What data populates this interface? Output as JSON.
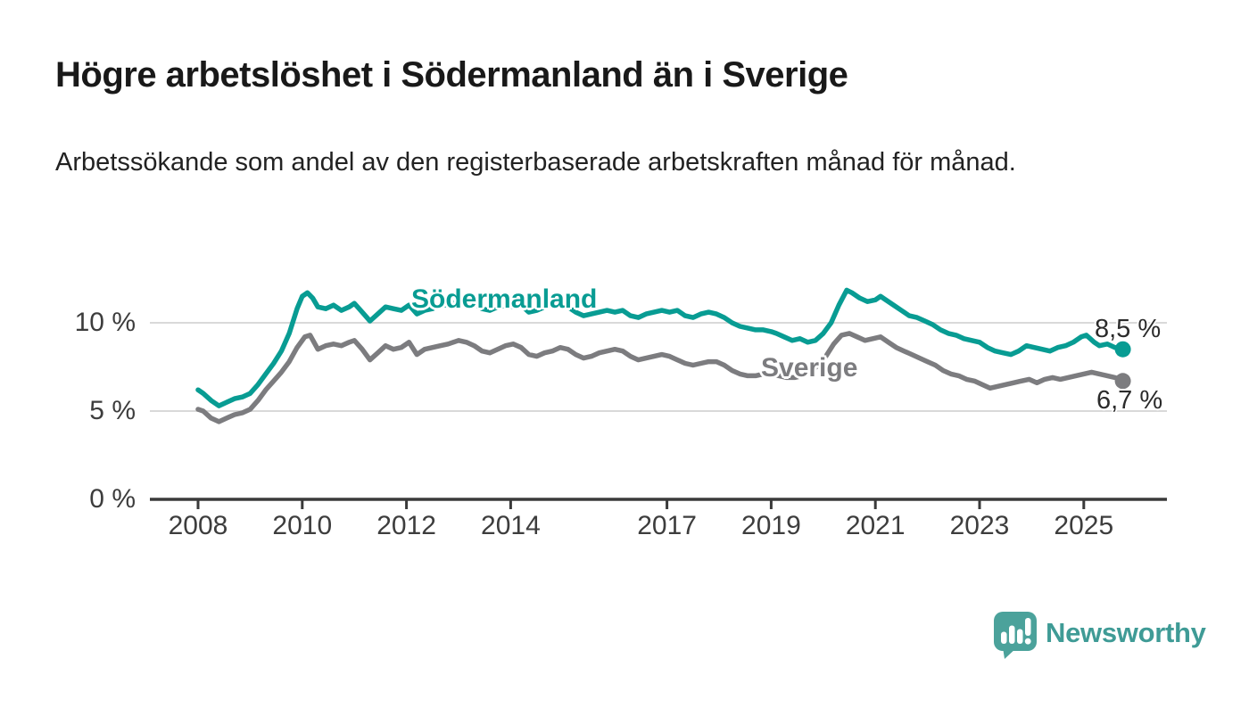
{
  "header": {
    "title": "Högre arbetslöshet i Södermanland än i Sverige",
    "subtitle": "Arbetssökande som andel av den registerbaserade arbetskraften månad för månad."
  },
  "branding": {
    "wordmark": "Newsworthy",
    "logo_icon": "speech-bubble-bar-chart-icon"
  },
  "colors": {
    "sodermanland": "#089c93",
    "sverige": "#7c7c7f",
    "grid": "#d9d9d9",
    "axis": "#3a3a3a",
    "title_text": "#191919",
    "label_text": "#2b2b2b",
    "brand_teal": "#4ba29b"
  },
  "chart_data": {
    "type": "line",
    "title": "Högre arbetslöshet i Södermanland än i Sverige",
    "subtitle": "Arbetssökande som andel av den registerbaserade arbetskraften månad för månad.",
    "xlabel": "",
    "ylabel": "",
    "x_unit": "year (monthly observations)",
    "y_unit": "percent of registered labour force",
    "xlim": [
      2007.1,
      2026.6
    ],
    "ylim": [
      0,
      12.5
    ],
    "grid": "horizontal",
    "legend_position": "inline-labels",
    "y_ticks": [
      {
        "value": 0,
        "label": "0 %"
      },
      {
        "value": 5,
        "label": "5 %"
      },
      {
        "value": 10,
        "label": "10 %"
      }
    ],
    "x_ticks": [
      {
        "value": 2008,
        "label": "2008"
      },
      {
        "value": 2010,
        "label": "2010"
      },
      {
        "value": 2012,
        "label": "2012"
      },
      {
        "value": 2014,
        "label": "2014"
      },
      {
        "value": 2017,
        "label": "2017"
      },
      {
        "value": 2019,
        "label": "2019"
      },
      {
        "value": 2021,
        "label": "2021"
      },
      {
        "value": 2023,
        "label": "2023"
      },
      {
        "value": 2025,
        "label": "2025"
      }
    ],
    "series": [
      {
        "name": "Södermanland",
        "color": "#089c93",
        "end_label": "8,5 %",
        "end_value": 8.5,
        "points": [
          [
            2008.0,
            6.2
          ],
          [
            2008.1,
            6.0
          ],
          [
            2008.25,
            5.6
          ],
          [
            2008.4,
            5.3
          ],
          [
            2008.55,
            5.5
          ],
          [
            2008.7,
            5.7
          ],
          [
            2008.85,
            5.8
          ],
          [
            2009.0,
            6.0
          ],
          [
            2009.15,
            6.5
          ],
          [
            2009.3,
            7.1
          ],
          [
            2009.45,
            7.7
          ],
          [
            2009.6,
            8.4
          ],
          [
            2009.75,
            9.4
          ],
          [
            2009.9,
            10.8
          ],
          [
            2010.0,
            11.5
          ],
          [
            2010.1,
            11.7
          ],
          [
            2010.2,
            11.4
          ],
          [
            2010.3,
            10.9
          ],
          [
            2010.45,
            10.8
          ],
          [
            2010.6,
            11.0
          ],
          [
            2010.75,
            10.7
          ],
          [
            2010.9,
            10.9
          ],
          [
            2011.0,
            11.1
          ],
          [
            2011.15,
            10.6
          ],
          [
            2011.3,
            10.1
          ],
          [
            2011.45,
            10.5
          ],
          [
            2011.6,
            10.9
          ],
          [
            2011.75,
            10.8
          ],
          [
            2011.9,
            10.7
          ],
          [
            2012.05,
            11.0
          ],
          [
            2012.2,
            10.5
          ],
          [
            2012.35,
            10.7
          ],
          [
            2012.5,
            10.8
          ],
          [
            2012.65,
            11.0
          ],
          [
            2012.8,
            11.0
          ],
          [
            2013.0,
            11.2
          ],
          [
            2013.15,
            11.1
          ],
          [
            2013.3,
            11.1
          ],
          [
            2013.45,
            10.8
          ],
          [
            2013.6,
            10.7
          ],
          [
            2013.75,
            10.9
          ],
          [
            2013.9,
            11.0
          ],
          [
            2014.05,
            10.9
          ],
          [
            2014.2,
            11.0
          ],
          [
            2014.35,
            10.6
          ],
          [
            2014.5,
            10.7
          ],
          [
            2014.65,
            10.9
          ],
          [
            2014.8,
            11.0
          ],
          [
            2014.95,
            11.1
          ],
          [
            2015.1,
            10.9
          ],
          [
            2015.25,
            10.6
          ],
          [
            2015.4,
            10.4
          ],
          [
            2015.55,
            10.5
          ],
          [
            2015.7,
            10.6
          ],
          [
            2015.85,
            10.7
          ],
          [
            2016.0,
            10.6
          ],
          [
            2016.15,
            10.7
          ],
          [
            2016.3,
            10.4
          ],
          [
            2016.45,
            10.3
          ],
          [
            2016.6,
            10.5
          ],
          [
            2016.75,
            10.6
          ],
          [
            2016.9,
            10.7
          ],
          [
            2017.05,
            10.6
          ],
          [
            2017.2,
            10.7
          ],
          [
            2017.35,
            10.4
          ],
          [
            2017.5,
            10.3
          ],
          [
            2017.65,
            10.5
          ],
          [
            2017.8,
            10.6
          ],
          [
            2017.95,
            10.5
          ],
          [
            2018.1,
            10.3
          ],
          [
            2018.25,
            10.0
          ],
          [
            2018.4,
            9.8
          ],
          [
            2018.55,
            9.7
          ],
          [
            2018.7,
            9.6
          ],
          [
            2018.85,
            9.6
          ],
          [
            2019.0,
            9.5
          ],
          [
            2019.1,
            9.4
          ],
          [
            2019.25,
            9.2
          ],
          [
            2019.4,
            9.0
          ],
          [
            2019.55,
            9.1
          ],
          [
            2019.7,
            8.9
          ],
          [
            2019.85,
            9.0
          ],
          [
            2020.0,
            9.4
          ],
          [
            2020.15,
            10.0
          ],
          [
            2020.3,
            11.0
          ],
          [
            2020.45,
            11.85
          ],
          [
            2020.55,
            11.7
          ],
          [
            2020.7,
            11.4
          ],
          [
            2020.85,
            11.2
          ],
          [
            2021.0,
            11.3
          ],
          [
            2021.1,
            11.5
          ],
          [
            2021.2,
            11.3
          ],
          [
            2021.35,
            11.0
          ],
          [
            2021.5,
            10.7
          ],
          [
            2021.65,
            10.4
          ],
          [
            2021.8,
            10.3
          ],
          [
            2021.95,
            10.1
          ],
          [
            2022.1,
            9.9
          ],
          [
            2022.25,
            9.6
          ],
          [
            2022.4,
            9.4
          ],
          [
            2022.55,
            9.3
          ],
          [
            2022.7,
            9.1
          ],
          [
            2022.85,
            9.0
          ],
          [
            2023.0,
            8.9
          ],
          [
            2023.15,
            8.6
          ],
          [
            2023.3,
            8.4
          ],
          [
            2023.45,
            8.3
          ],
          [
            2023.6,
            8.2
          ],
          [
            2023.75,
            8.4
          ],
          [
            2023.9,
            8.7
          ],
          [
            2024.05,
            8.6
          ],
          [
            2024.2,
            8.5
          ],
          [
            2024.35,
            8.4
          ],
          [
            2024.5,
            8.6
          ],
          [
            2024.65,
            8.7
          ],
          [
            2024.8,
            8.9
          ],
          [
            2024.95,
            9.2
          ],
          [
            2025.05,
            9.3
          ],
          [
            2025.2,
            8.9
          ],
          [
            2025.3,
            8.7
          ],
          [
            2025.45,
            8.8
          ],
          [
            2025.6,
            8.6
          ],
          [
            2025.75,
            8.5
          ]
        ]
      },
      {
        "name": "Sverige",
        "color": "#7c7c7f",
        "end_label": "6,7 %",
        "end_value": 6.7,
        "points": [
          [
            2008.0,
            5.1
          ],
          [
            2008.1,
            5.0
          ],
          [
            2008.25,
            4.6
          ],
          [
            2008.4,
            4.4
          ],
          [
            2008.55,
            4.6
          ],
          [
            2008.7,
            4.8
          ],
          [
            2008.85,
            4.9
          ],
          [
            2009.0,
            5.1
          ],
          [
            2009.15,
            5.6
          ],
          [
            2009.3,
            6.2
          ],
          [
            2009.45,
            6.7
          ],
          [
            2009.6,
            7.2
          ],
          [
            2009.75,
            7.8
          ],
          [
            2009.9,
            8.6
          ],
          [
            2010.05,
            9.2
          ],
          [
            2010.15,
            9.3
          ],
          [
            2010.3,
            8.5
          ],
          [
            2010.45,
            8.7
          ],
          [
            2010.6,
            8.8
          ],
          [
            2010.75,
            8.7
          ],
          [
            2010.9,
            8.9
          ],
          [
            2011.0,
            9.0
          ],
          [
            2011.15,
            8.5
          ],
          [
            2011.3,
            7.9
          ],
          [
            2011.45,
            8.3
          ],
          [
            2011.6,
            8.7
          ],
          [
            2011.75,
            8.5
          ],
          [
            2011.9,
            8.6
          ],
          [
            2012.05,
            8.9
          ],
          [
            2012.2,
            8.2
          ],
          [
            2012.35,
            8.5
          ],
          [
            2012.5,
            8.6
          ],
          [
            2012.65,
            8.7
          ],
          [
            2012.8,
            8.8
          ],
          [
            2013.0,
            9.0
          ],
          [
            2013.15,
            8.9
          ],
          [
            2013.3,
            8.7
          ],
          [
            2013.45,
            8.4
          ],
          [
            2013.6,
            8.3
          ],
          [
            2013.75,
            8.5
          ],
          [
            2013.9,
            8.7
          ],
          [
            2014.05,
            8.8
          ],
          [
            2014.2,
            8.6
          ],
          [
            2014.35,
            8.2
          ],
          [
            2014.5,
            8.1
          ],
          [
            2014.65,
            8.3
          ],
          [
            2014.8,
            8.4
          ],
          [
            2014.95,
            8.6
          ],
          [
            2015.1,
            8.5
          ],
          [
            2015.25,
            8.2
          ],
          [
            2015.4,
            8.0
          ],
          [
            2015.55,
            8.1
          ],
          [
            2015.7,
            8.3
          ],
          [
            2015.85,
            8.4
          ],
          [
            2016.0,
            8.5
          ],
          [
            2016.15,
            8.4
          ],
          [
            2016.3,
            8.1
          ],
          [
            2016.45,
            7.9
          ],
          [
            2016.6,
            8.0
          ],
          [
            2016.75,
            8.1
          ],
          [
            2016.9,
            8.2
          ],
          [
            2017.05,
            8.1
          ],
          [
            2017.2,
            7.9
          ],
          [
            2017.35,
            7.7
          ],
          [
            2017.5,
            7.6
          ],
          [
            2017.65,
            7.7
          ],
          [
            2017.8,
            7.8
          ],
          [
            2017.95,
            7.8
          ],
          [
            2018.1,
            7.6
          ],
          [
            2018.25,
            7.3
          ],
          [
            2018.4,
            7.1
          ],
          [
            2018.55,
            7.0
          ],
          [
            2018.7,
            7.0
          ],
          [
            2018.85,
            7.1
          ],
          [
            2019.0,
            7.1
          ],
          [
            2019.15,
            7.0
          ],
          [
            2019.3,
            6.9
          ],
          [
            2019.45,
            6.9
          ],
          [
            2019.6,
            7.0
          ],
          [
            2019.75,
            7.2
          ],
          [
            2019.9,
            7.6
          ],
          [
            2020.05,
            8.1
          ],
          [
            2020.2,
            8.8
          ],
          [
            2020.35,
            9.3
          ],
          [
            2020.5,
            9.4
          ],
          [
            2020.65,
            9.2
          ],
          [
            2020.8,
            9.0
          ],
          [
            2020.95,
            9.1
          ],
          [
            2021.1,
            9.2
          ],
          [
            2021.25,
            8.9
          ],
          [
            2021.4,
            8.6
          ],
          [
            2021.55,
            8.4
          ],
          [
            2021.7,
            8.2
          ],
          [
            2021.85,
            8.0
          ],
          [
            2022.0,
            7.8
          ],
          [
            2022.15,
            7.6
          ],
          [
            2022.3,
            7.3
          ],
          [
            2022.45,
            7.1
          ],
          [
            2022.6,
            7.0
          ],
          [
            2022.75,
            6.8
          ],
          [
            2022.9,
            6.7
          ],
          [
            2023.05,
            6.5
          ],
          [
            2023.2,
            6.3
          ],
          [
            2023.35,
            6.4
          ],
          [
            2023.5,
            6.5
          ],
          [
            2023.65,
            6.6
          ],
          [
            2023.8,
            6.7
          ],
          [
            2023.95,
            6.8
          ],
          [
            2024.1,
            6.6
          ],
          [
            2024.25,
            6.8
          ],
          [
            2024.4,
            6.9
          ],
          [
            2024.55,
            6.8
          ],
          [
            2024.7,
            6.9
          ],
          [
            2024.85,
            7.0
          ],
          [
            2025.0,
            7.1
          ],
          [
            2025.15,
            7.2
          ],
          [
            2025.3,
            7.1
          ],
          [
            2025.45,
            7.0
          ],
          [
            2025.6,
            6.9
          ],
          [
            2025.75,
            6.7
          ]
        ]
      }
    ]
  }
}
